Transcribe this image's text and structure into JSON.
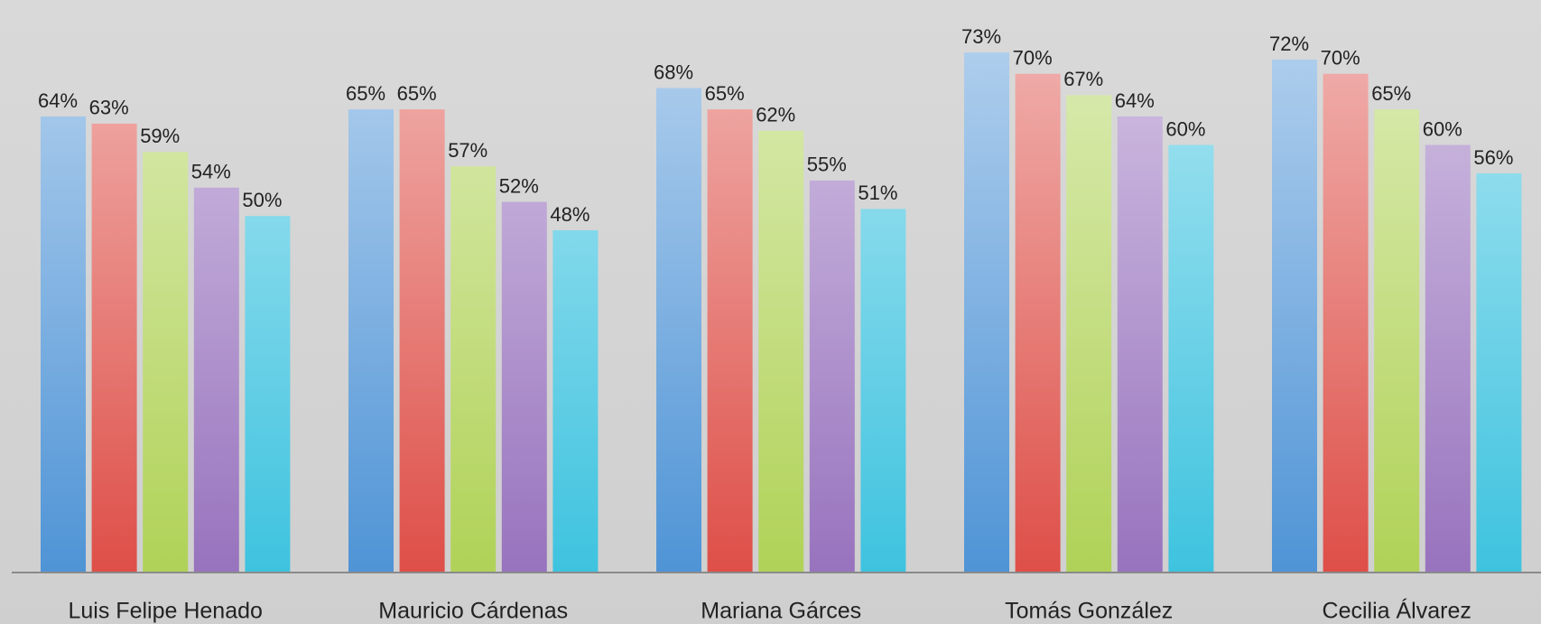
{
  "chart_data": {
    "type": "bar",
    "categories": [
      "Luis Felipe Henado",
      "Mauricio Cárdenas",
      "Mariana Gárces",
      "Tomás González",
      "Cecilia Álvarez"
    ],
    "series": [
      {
        "color": "#4f94d6",
        "values": [
          64,
          65,
          68,
          73,
          72
        ],
        "value_labels": [
          "64%",
          "65%",
          "68%",
          "73%",
          "72%"
        ]
      },
      {
        "color": "#de4f48",
        "values": [
          63,
          65,
          65,
          70,
          70
        ],
        "value_labels": [
          "63%",
          "65%",
          "65%",
          "70%",
          "70%"
        ]
      },
      {
        "color": "#b0d257",
        "values": [
          59,
          57,
          62,
          67,
          65
        ],
        "value_labels": [
          "59%",
          "57%",
          "62%",
          "67%",
          "65%"
        ]
      },
      {
        "color": "#9873be",
        "values": [
          54,
          52,
          55,
          64,
          60
        ],
        "value_labels": [
          "54%",
          "52%",
          "55%",
          "64%",
          "60%"
        ]
      },
      {
        "color": "#3ec3df",
        "values": [
          50,
          48,
          51,
          60,
          56
        ],
        "value_labels": [
          "50%",
          "48%",
          "51%",
          "60%",
          "56%"
        ]
      }
    ],
    "ylim": [
      0,
      80
    ]
  }
}
